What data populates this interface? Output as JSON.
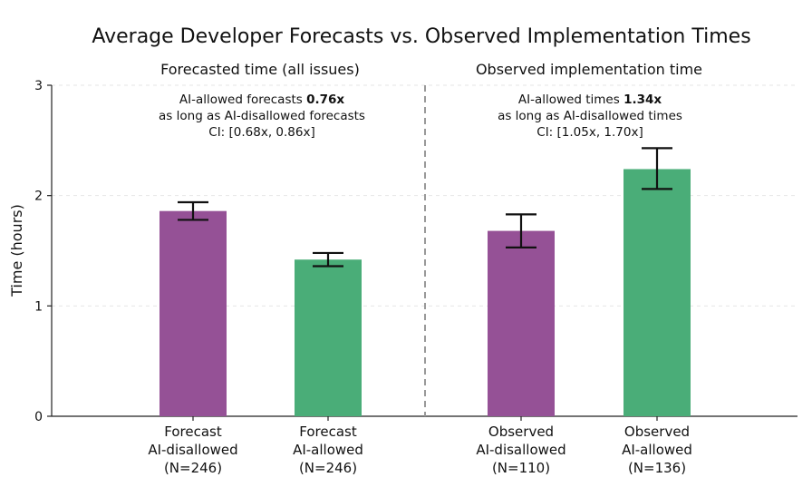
{
  "chart_data": {
    "type": "bar",
    "title": "Average Developer Forecasts vs. Observed Implementation Times",
    "ylabel": "Time (hours)",
    "xlabel": "",
    "ylim": [
      0,
      3
    ],
    "yticks": [
      0,
      1,
      2,
      3
    ],
    "grid": true,
    "panels": [
      {
        "subtitle": "Forecasted time (all issues)",
        "annotation": {
          "prefix": "AI-allowed forecasts ",
          "value": "0.76x",
          "line2": "as long as AI-disallowed forecasts",
          "line3": "CI: [0.68x, 0.86x]"
        }
      },
      {
        "subtitle": "Observed implementation time",
        "annotation": {
          "prefix": "AI-allowed times ",
          "value": "1.34x",
          "line2": "as long as AI-disallowed times",
          "line3": "CI: [1.05x, 1.70x]"
        }
      }
    ],
    "bars": [
      {
        "label": [
          "Forecast",
          "AI-disallowed",
          "(N=246)"
        ],
        "value": 1.86,
        "err_low": 1.78,
        "err_high": 1.94,
        "color": "#955196",
        "panel": 0
      },
      {
        "label": [
          "Forecast",
          "AI-allowed",
          "(N=246)"
        ],
        "value": 1.42,
        "err_low": 1.36,
        "err_high": 1.48,
        "color": "#4aad78",
        "panel": 0
      },
      {
        "label": [
          "Observed",
          "AI-disallowed",
          "(N=110)"
        ],
        "value": 1.68,
        "err_low": 1.53,
        "err_high": 1.83,
        "color": "#955196",
        "panel": 1
      },
      {
        "label": [
          "Observed",
          "AI-allowed",
          "(N=136)"
        ],
        "value": 2.24,
        "err_low": 2.06,
        "err_high": 2.43,
        "color": "#4aad78",
        "panel": 1
      }
    ]
  }
}
